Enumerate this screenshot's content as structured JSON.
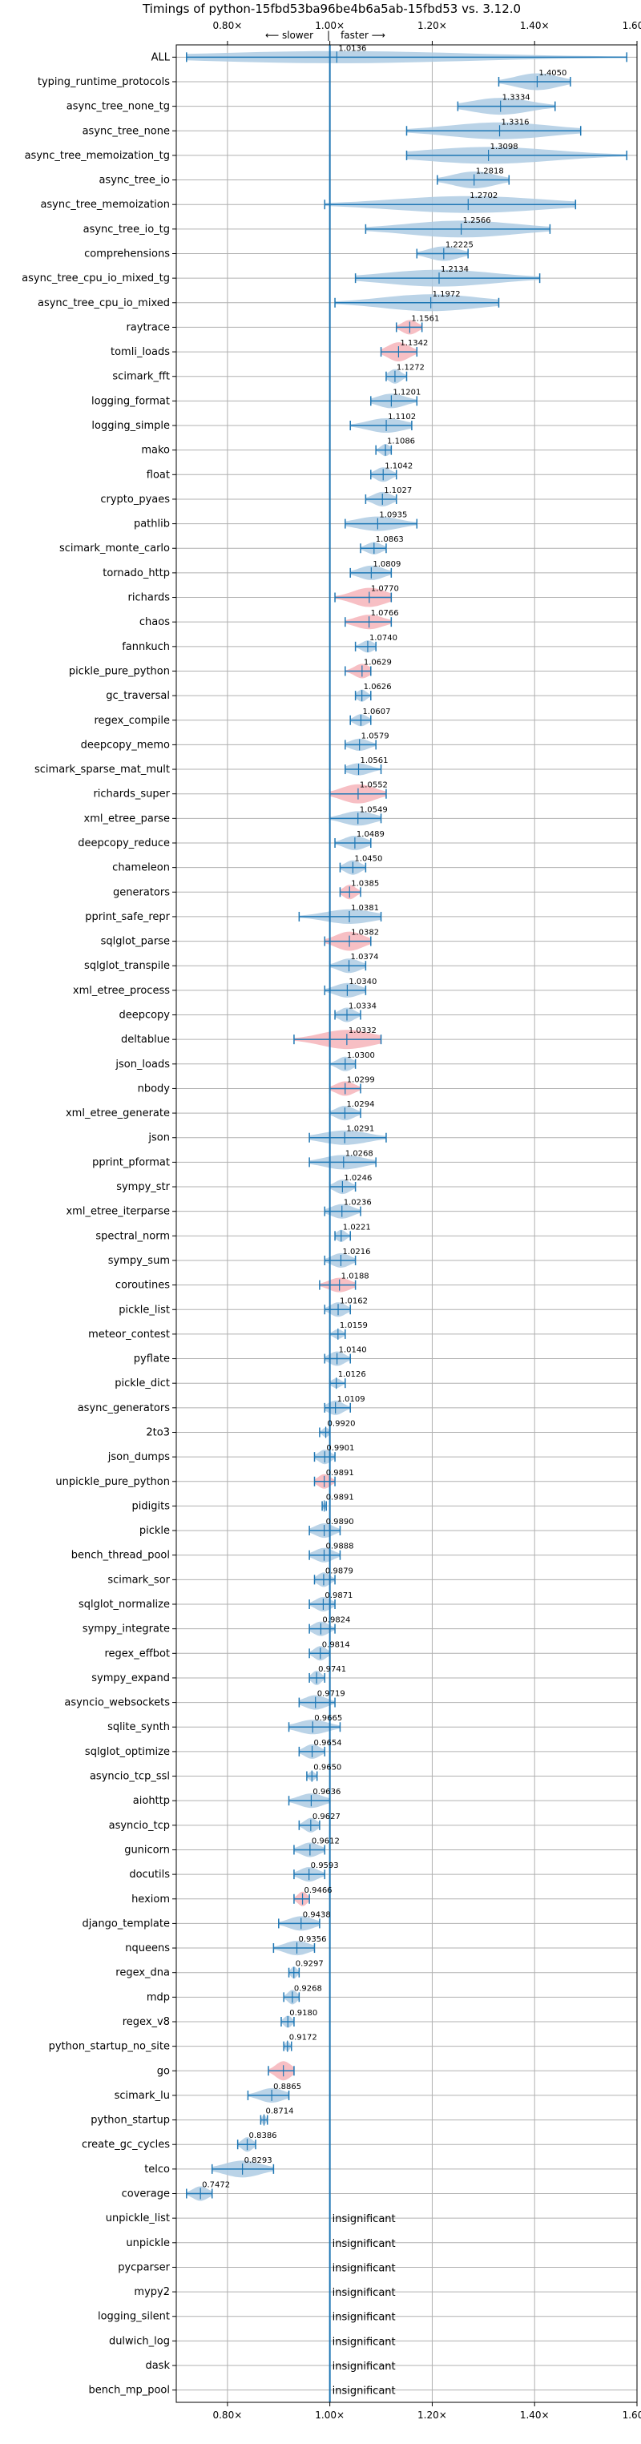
{
  "chart_data": {
    "type": "violin",
    "title": "Timings of python-15fbd53ba96be4b6a5ab-15fbd53 vs. 3.12.0",
    "direction": {
      "slower": "⟵ slower",
      "faster": "faster ⟶",
      "separator": "|"
    },
    "xlim": [
      0.7,
      1.6
    ],
    "x_ticks": [
      {
        "value": 0.8,
        "label": "0.80×"
      },
      {
        "value": 1.0,
        "label": "1.00×"
      },
      {
        "value": 1.2,
        "label": "1.20×"
      },
      {
        "value": 1.4,
        "label": "1.40×"
      },
      {
        "value": 1.6,
        "label": "1.60×"
      }
    ],
    "grid": true,
    "reference_line": 1.0,
    "colors": {
      "normal": "#aecbe3",
      "slower": "#f6b4ba",
      "whisker": "#1f77b4",
      "reference": "#1f77b4"
    },
    "insignificant_text": "insignificant",
    "benchmarks": [
      {
        "name": "ALL",
        "value": 1.0136,
        "label": "1.0136",
        "min": 0.72,
        "max": 1.58,
        "width": 0.25
      },
      {
        "name": "typing_runtime_protocols",
        "value": 1.405,
        "label": "1.4050",
        "min": 1.33,
        "max": 1.47,
        "width": 0.35
      },
      {
        "name": "async_tree_none_tg",
        "value": 1.3334,
        "label": "1.3334",
        "min": 1.25,
        "max": 1.44,
        "width": 0.35
      },
      {
        "name": "async_tree_none",
        "value": 1.3316,
        "label": "1.3316",
        "min": 1.15,
        "max": 1.49,
        "width": 0.35
      },
      {
        "name": "async_tree_memoization_tg",
        "value": 1.3098,
        "label": "1.3098",
        "min": 1.15,
        "max": 1.58,
        "width": 0.35
      },
      {
        "name": "async_tree_io",
        "value": 1.2818,
        "label": "1.2818",
        "min": 1.21,
        "max": 1.35,
        "width": 0.35
      },
      {
        "name": "async_tree_memoization",
        "value": 1.2702,
        "label": "1.2702",
        "min": 0.99,
        "max": 1.48,
        "width": 0.35
      },
      {
        "name": "async_tree_io_tg",
        "value": 1.2566,
        "label": "1.2566",
        "min": 1.07,
        "max": 1.43,
        "width": 0.35
      },
      {
        "name": "comprehensions",
        "value": 1.2225,
        "label": "1.2225",
        "min": 1.17,
        "max": 1.27,
        "width": 0.3
      },
      {
        "name": "async_tree_cpu_io_mixed_tg",
        "value": 1.2134,
        "label": "1.2134",
        "min": 1.05,
        "max": 1.41,
        "width": 0.35
      },
      {
        "name": "async_tree_cpu_io_mixed",
        "value": 1.1972,
        "label": "1.1972",
        "min": 1.01,
        "max": 1.33,
        "width": 0.35
      },
      {
        "name": "raytrace",
        "value": 1.1561,
        "label": "1.1561",
        "min": 1.13,
        "max": 1.18,
        "width": 0.3,
        "slower": true
      },
      {
        "name": "tomli_loads",
        "value": 1.1342,
        "label": "1.1342",
        "min": 1.1,
        "max": 1.17,
        "width": 0.4,
        "slower": true
      },
      {
        "name": "scimark_fft",
        "value": 1.1272,
        "label": "1.1272",
        "min": 1.11,
        "max": 1.15,
        "width": 0.3
      },
      {
        "name": "logging_format",
        "value": 1.1201,
        "label": "1.1201",
        "min": 1.08,
        "max": 1.17,
        "width": 0.3
      },
      {
        "name": "logging_simple",
        "value": 1.1102,
        "label": "1.1102",
        "min": 1.04,
        "max": 1.16,
        "width": 0.3
      },
      {
        "name": "mako",
        "value": 1.1086,
        "label": "1.1086",
        "min": 1.09,
        "max": 1.12,
        "width": 0.25
      },
      {
        "name": "float",
        "value": 1.1042,
        "label": "1.1042",
        "min": 1.08,
        "max": 1.13,
        "width": 0.3
      },
      {
        "name": "crypto_pyaes",
        "value": 1.1027,
        "label": "1.1027",
        "min": 1.07,
        "max": 1.13,
        "width": 0.3
      },
      {
        "name": "pathlib",
        "value": 1.0935,
        "label": "1.0935",
        "min": 1.03,
        "max": 1.17,
        "width": 0.3
      },
      {
        "name": "scimark_monte_carlo",
        "value": 1.0863,
        "label": "1.0863",
        "min": 1.06,
        "max": 1.11,
        "width": 0.25
      },
      {
        "name": "tornado_http",
        "value": 1.0809,
        "label": "1.0809",
        "min": 1.04,
        "max": 1.12,
        "width": 0.3
      },
      {
        "name": "richards",
        "value": 1.077,
        "label": "1.0770",
        "min": 1.01,
        "max": 1.12,
        "width": 0.4,
        "slower": true
      },
      {
        "name": "chaos",
        "value": 1.0766,
        "label": "1.0766",
        "min": 1.03,
        "max": 1.12,
        "width": 0.3,
        "slower": true
      },
      {
        "name": "fannkuch",
        "value": 1.074,
        "label": "1.0740",
        "min": 1.05,
        "max": 1.09,
        "width": 0.25
      },
      {
        "name": "pickle_pure_python",
        "value": 1.0629,
        "label": "1.0629",
        "min": 1.03,
        "max": 1.08,
        "width": 0.3,
        "slower": true
      },
      {
        "name": "gc_traversal",
        "value": 1.0626,
        "label": "1.0626",
        "min": 1.05,
        "max": 1.08,
        "width": 0.25
      },
      {
        "name": "regex_compile",
        "value": 1.0607,
        "label": "1.0607",
        "min": 1.04,
        "max": 1.08,
        "width": 0.25
      },
      {
        "name": "deepcopy_memo",
        "value": 1.0579,
        "label": "1.0579",
        "min": 1.03,
        "max": 1.09,
        "width": 0.25
      },
      {
        "name": "scimark_sparse_mat_mult",
        "value": 1.0561,
        "label": "1.0561",
        "min": 1.03,
        "max": 1.1,
        "width": 0.25
      },
      {
        "name": "richards_super",
        "value": 1.0552,
        "label": "1.0552",
        "min": 1.0,
        "max": 1.11,
        "width": 0.4,
        "slower": true
      },
      {
        "name": "xml_etree_parse",
        "value": 1.0549,
        "label": "1.0549",
        "min": 1.0,
        "max": 1.1,
        "width": 0.3
      },
      {
        "name": "deepcopy_reduce",
        "value": 1.0489,
        "label": "1.0489",
        "min": 1.01,
        "max": 1.08,
        "width": 0.3
      },
      {
        "name": "chameleon",
        "value": 1.045,
        "label": "1.0450",
        "min": 1.02,
        "max": 1.07,
        "width": 0.3
      },
      {
        "name": "generators",
        "value": 1.0385,
        "label": "1.0385",
        "min": 1.02,
        "max": 1.06,
        "width": 0.3,
        "slower": true
      },
      {
        "name": "pprint_safe_repr",
        "value": 1.0381,
        "label": "1.0381",
        "min": 0.94,
        "max": 1.1,
        "width": 0.3
      },
      {
        "name": "sqlglot_parse",
        "value": 1.0382,
        "label": "1.0382",
        "min": 0.99,
        "max": 1.08,
        "width": 0.4,
        "slower": true
      },
      {
        "name": "sqlglot_transpile",
        "value": 1.0374,
        "label": "1.0374",
        "min": 1.0,
        "max": 1.07,
        "width": 0.3
      },
      {
        "name": "xml_etree_process",
        "value": 1.034,
        "label": "1.0340",
        "min": 0.99,
        "max": 1.07,
        "width": 0.3
      },
      {
        "name": "deepcopy",
        "value": 1.0334,
        "label": "1.0334",
        "min": 1.01,
        "max": 1.06,
        "width": 0.3
      },
      {
        "name": "deltablue",
        "value": 1.0332,
        "label": "1.0332",
        "min": 0.93,
        "max": 1.1,
        "width": 0.4,
        "slower": true
      },
      {
        "name": "json_loads",
        "value": 1.03,
        "label": "1.0300",
        "min": 1.0,
        "max": 1.05,
        "width": 0.3
      },
      {
        "name": "nbody",
        "value": 1.0299,
        "label": "1.0299",
        "min": 1.0,
        "max": 1.06,
        "width": 0.3,
        "slower": true
      },
      {
        "name": "xml_etree_generate",
        "value": 1.0294,
        "label": "1.0294",
        "min": 1.0,
        "max": 1.06,
        "width": 0.3
      },
      {
        "name": "json",
        "value": 1.0291,
        "label": "1.0291",
        "min": 0.96,
        "max": 1.11,
        "width": 0.3
      },
      {
        "name": "pprint_pformat",
        "value": 1.0268,
        "label": "1.0268",
        "min": 0.96,
        "max": 1.09,
        "width": 0.3
      },
      {
        "name": "sympy_str",
        "value": 1.0246,
        "label": "1.0246",
        "min": 1.0,
        "max": 1.05,
        "width": 0.3
      },
      {
        "name": "xml_etree_iterparse",
        "value": 1.0236,
        "label": "1.0236",
        "min": 0.99,
        "max": 1.06,
        "width": 0.3
      },
      {
        "name": "spectral_norm",
        "value": 1.0221,
        "label": "1.0221",
        "min": 1.01,
        "max": 1.04,
        "width": 0.25
      },
      {
        "name": "sympy_sum",
        "value": 1.0216,
        "label": "1.0216",
        "min": 0.99,
        "max": 1.05,
        "width": 0.3
      },
      {
        "name": "coroutines",
        "value": 1.0188,
        "label": "1.0188",
        "min": 0.98,
        "max": 1.05,
        "width": 0.3,
        "slower": true
      },
      {
        "name": "pickle_list",
        "value": 1.0162,
        "label": "1.0162",
        "min": 0.99,
        "max": 1.04,
        "width": 0.3
      },
      {
        "name": "meteor_contest",
        "value": 1.0159,
        "label": "1.0159",
        "min": 1.0,
        "max": 1.03,
        "width": 0.2
      },
      {
        "name": "pyflate",
        "value": 1.014,
        "label": "1.0140",
        "min": 0.99,
        "max": 1.04,
        "width": 0.3
      },
      {
        "name": "pickle_dict",
        "value": 1.0126,
        "label": "1.0126",
        "min": 1.0,
        "max": 1.03,
        "width": 0.2
      },
      {
        "name": "async_generators",
        "value": 1.0109,
        "label": "1.0109",
        "min": 0.99,
        "max": 1.04,
        "width": 0.3
      },
      {
        "name": "2to3",
        "value": 0.992,
        "label": "0.9920",
        "min": 0.98,
        "max": 1.0,
        "width": 0.2
      },
      {
        "name": "json_dumps",
        "value": 0.9901,
        "label": "0.9901",
        "min": 0.97,
        "max": 1.01,
        "width": 0.3
      },
      {
        "name": "unpickle_pure_python",
        "value": 0.9891,
        "label": "0.9891",
        "min": 0.97,
        "max": 1.01,
        "width": 0.3,
        "slower": true
      },
      {
        "name": "pidigits",
        "value": 0.9891,
        "label": "0.9891",
        "min": 0.985,
        "max": 0.993,
        "width": 0.15
      },
      {
        "name": "pickle",
        "value": 0.989,
        "label": "0.9890",
        "min": 0.96,
        "max": 1.02,
        "width": 0.3
      },
      {
        "name": "bench_thread_pool",
        "value": 0.9888,
        "label": "0.9888",
        "min": 0.96,
        "max": 1.02,
        "width": 0.3
      },
      {
        "name": "scimark_sor",
        "value": 0.9879,
        "label": "0.9879",
        "min": 0.97,
        "max": 1.01,
        "width": 0.3
      },
      {
        "name": "sqlglot_normalize",
        "value": 0.9871,
        "label": "0.9871",
        "min": 0.96,
        "max": 1.01,
        "width": 0.3
      },
      {
        "name": "sympy_integrate",
        "value": 0.9824,
        "label": "0.9824",
        "min": 0.96,
        "max": 1.01,
        "width": 0.3
      },
      {
        "name": "regex_effbot",
        "value": 0.9814,
        "label": "0.9814",
        "min": 0.96,
        "max": 1.0,
        "width": 0.3
      },
      {
        "name": "sympy_expand",
        "value": 0.9741,
        "label": "0.9741",
        "min": 0.96,
        "max": 0.99,
        "width": 0.3
      },
      {
        "name": "asyncio_websockets",
        "value": 0.9719,
        "label": "0.9719",
        "min": 0.94,
        "max": 1.01,
        "width": 0.3
      },
      {
        "name": "sqlite_synth",
        "value": 0.9665,
        "label": "0.9665",
        "min": 0.92,
        "max": 1.02,
        "width": 0.3
      },
      {
        "name": "sqlglot_optimize",
        "value": 0.9654,
        "label": "0.9654",
        "min": 0.94,
        "max": 0.99,
        "width": 0.3
      },
      {
        "name": "asyncio_tcp_ssl",
        "value": 0.965,
        "label": "0.9650",
        "min": 0.955,
        "max": 0.975,
        "width": 0.2
      },
      {
        "name": "aiohttp",
        "value": 0.9636,
        "label": "0.9636",
        "min": 0.92,
        "max": 1.0,
        "width": 0.3
      },
      {
        "name": "asyncio_tcp",
        "value": 0.9627,
        "label": "0.9627",
        "min": 0.94,
        "max": 0.98,
        "width": 0.3
      },
      {
        "name": "gunicorn",
        "value": 0.9612,
        "label": "0.9612",
        "min": 0.93,
        "max": 0.99,
        "width": 0.3
      },
      {
        "name": "docutils",
        "value": 0.9593,
        "label": "0.9593",
        "min": 0.93,
        "max": 0.99,
        "width": 0.3
      },
      {
        "name": "hexiom",
        "value": 0.9466,
        "label": "0.9466",
        "min": 0.93,
        "max": 0.96,
        "width": 0.3,
        "slower": true
      },
      {
        "name": "django_template",
        "value": 0.9438,
        "label": "0.9438",
        "min": 0.9,
        "max": 0.98,
        "width": 0.3
      },
      {
        "name": "nqueens",
        "value": 0.9356,
        "label": "0.9356",
        "min": 0.89,
        "max": 0.97,
        "width": 0.3
      },
      {
        "name": "regex_dna",
        "value": 0.9297,
        "label": "0.9297",
        "min": 0.92,
        "max": 0.94,
        "width": 0.25
      },
      {
        "name": "mdp",
        "value": 0.9268,
        "label": "0.9268",
        "min": 0.91,
        "max": 0.94,
        "width": 0.3
      },
      {
        "name": "regex_v8",
        "value": 0.918,
        "label": "0.9180",
        "min": 0.905,
        "max": 0.93,
        "width": 0.25
      },
      {
        "name": "python_startup_no_site",
        "value": 0.9172,
        "label": "0.9172",
        "min": 0.91,
        "max": 0.925,
        "width": 0.2
      },
      {
        "name": "go",
        "value": 0.9092,
        "label": "",
        "min": 0.88,
        "max": 0.93,
        "width": 0.4,
        "slower": true
      },
      {
        "name": "scimark_lu",
        "value": 0.8865,
        "label": "0.8865",
        "min": 0.84,
        "max": 0.92,
        "width": 0.3
      },
      {
        "name": "python_startup",
        "value": 0.8714,
        "label": "0.8714",
        "min": 0.865,
        "max": 0.878,
        "width": 0.2
      },
      {
        "name": "create_gc_cycles",
        "value": 0.8386,
        "label": "0.8386",
        "min": 0.82,
        "max": 0.855,
        "width": 0.3
      },
      {
        "name": "telco",
        "value": 0.8293,
        "label": "0.8293",
        "min": 0.77,
        "max": 0.89,
        "width": 0.35
      },
      {
        "name": "coverage",
        "value": 0.7472,
        "label": "0.7472",
        "min": 0.72,
        "max": 0.77,
        "width": 0.3
      },
      {
        "name": "unpickle_list",
        "insignificant": true
      },
      {
        "name": "unpickle",
        "insignificant": true
      },
      {
        "name": "pycparser",
        "insignificant": true
      },
      {
        "name": "mypy2",
        "insignificant": true
      },
      {
        "name": "logging_silent",
        "insignificant": true
      },
      {
        "name": "dulwich_log",
        "insignificant": true
      },
      {
        "name": "dask",
        "insignificant": true
      },
      {
        "name": "bench_mp_pool",
        "insignificant": true
      }
    ]
  }
}
